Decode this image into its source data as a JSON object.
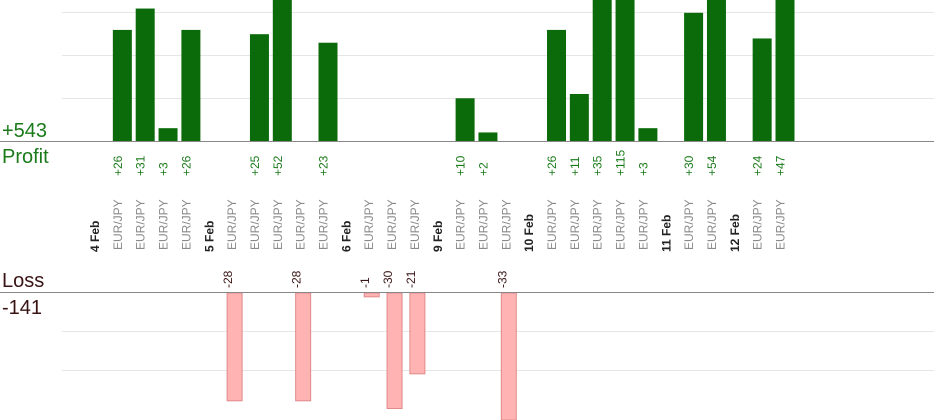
{
  "summary": {
    "profit_total": "+543",
    "profit_label": "Profit",
    "loss_label": "Loss",
    "loss_total": "-141"
  },
  "colors": {
    "profit_bar": "#0b6b0b",
    "profit_text": "#1a7a1a",
    "loss_bar": "#ffb3b3",
    "loss_bar_border": "#e08a8a",
    "loss_text": "#3a1414",
    "symbol_text": "#8a8a8a",
    "date_text": "#222222",
    "grid": "#e6e6e6",
    "axis": "#888888"
  },
  "chart_data": {
    "type": "bar",
    "ylim_profit": [
      0,
      33
    ],
    "ylim_loss": [
      0,
      30
    ],
    "grid": true,
    "slots": [
      {
        "kind": "date",
        "label": "4 Feb"
      },
      {
        "kind": "trade",
        "symbol": "EUR/JPY",
        "value": 26,
        "label": "+26"
      },
      {
        "kind": "trade",
        "symbol": "EUR/JPY",
        "value": 31,
        "label": "+31"
      },
      {
        "kind": "trade",
        "symbol": "EUR/JPY",
        "value": 3,
        "label": "+3"
      },
      {
        "kind": "trade",
        "symbol": "EUR/JPY",
        "value": 26,
        "label": "+26"
      },
      {
        "kind": "date",
        "label": "5 Feb"
      },
      {
        "kind": "trade",
        "symbol": "EUR/JPY",
        "value": -28,
        "label": "-28"
      },
      {
        "kind": "trade",
        "symbol": "EUR/JPY",
        "value": 25,
        "label": "+25"
      },
      {
        "kind": "trade",
        "symbol": "EUR/JPY",
        "value": 52,
        "label": "+52"
      },
      {
        "kind": "trade",
        "symbol": "EUR/JPY",
        "value": -28,
        "label": "-28"
      },
      {
        "kind": "trade",
        "symbol": "EUR/JPY",
        "value": 23,
        "label": "+23"
      },
      {
        "kind": "date",
        "label": "6 Feb"
      },
      {
        "kind": "trade",
        "symbol": "EUR/JPY",
        "value": -1,
        "label": "-1"
      },
      {
        "kind": "trade",
        "symbol": "EUR/JPY",
        "value": -30,
        "label": "-30"
      },
      {
        "kind": "trade",
        "symbol": "EUR/JPY",
        "value": -21,
        "label": "-21"
      },
      {
        "kind": "date",
        "label": "9 Feb"
      },
      {
        "kind": "trade",
        "symbol": "EUR/JPY",
        "value": 10,
        "label": "+10"
      },
      {
        "kind": "trade",
        "symbol": "EUR/JPY",
        "value": 2,
        "label": "+2"
      },
      {
        "kind": "trade",
        "symbol": "EUR/JPY",
        "value": -33,
        "label": "-33"
      },
      {
        "kind": "date",
        "label": "10 Feb"
      },
      {
        "kind": "trade",
        "symbol": "EUR/JPY",
        "value": 26,
        "label": "+26"
      },
      {
        "kind": "trade",
        "symbol": "EUR/JPY",
        "value": 11,
        "label": "+11"
      },
      {
        "kind": "trade",
        "symbol": "EUR/JPY",
        "value": 35,
        "label": "+35"
      },
      {
        "kind": "trade",
        "symbol": "EUR/JPY",
        "value": 115,
        "label": "+115"
      },
      {
        "kind": "trade",
        "symbol": "EUR/JPY",
        "value": 3,
        "label": "+3"
      },
      {
        "kind": "date",
        "label": "11 Feb"
      },
      {
        "kind": "trade",
        "symbol": "EUR/JPY",
        "value": 30,
        "label": "+30"
      },
      {
        "kind": "trade",
        "symbol": "EUR/JPY",
        "value": 54,
        "label": "+54"
      },
      {
        "kind": "date",
        "label": "12 Feb"
      },
      {
        "kind": "trade",
        "symbol": "EUR/JPY",
        "value": 24,
        "label": "+24"
      },
      {
        "kind": "trade",
        "symbol": "EUR/JPY",
        "value": 47,
        "label": "+47"
      }
    ]
  }
}
